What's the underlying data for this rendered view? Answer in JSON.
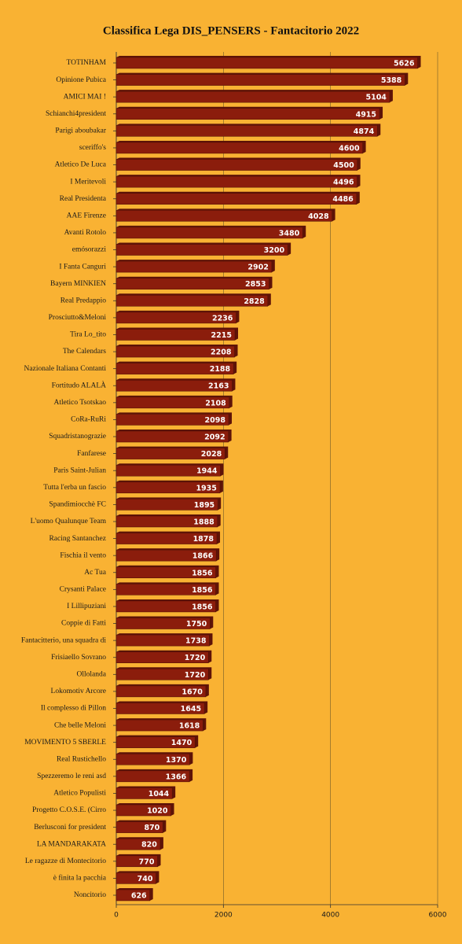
{
  "chart_data": {
    "type": "bar",
    "orientation": "horizontal",
    "title": "Classifica Lega DIS_PENSERS - Fantacitorio 2022",
    "categories": [
      "TOTINHAM",
      "Opinione Pubica",
      "AMICI MAI !",
      "Schianchi4president",
      "Parigi aboubakar",
      "sceriffo's",
      "Atletico De Luca",
      "I Meritevoli",
      "Real Presidenta",
      "AAE Firenze",
      "Avanti Rotolo",
      "emósorazzi",
      "I Fanta Canguri",
      "Bayern MINKIEN",
      "Real Predappio",
      "Prosciutto&Meloni",
      "Tira Lo_tito",
      "The Calendars",
      "Nazionale Italiana Contanti",
      "Fortitudo ALALÀ",
      "Atletico Tsotskao",
      "CoRa-RuRi",
      "Squadristanograzie",
      "Fanfarese",
      "Paris Saint-Julian",
      "Tutta l'erba un fascio",
      "Spandimiocchè FC",
      "L'uomo Qualunque Team",
      "Racing Santanchez",
      "Fischia il vento",
      "Ac Tua",
      "Crysanti Palace",
      "I Lillipuziani",
      "Coppie di Fatti",
      "Fantacitterio, una squadra di",
      "Frisiaello Sovrano",
      "Ollolanda",
      "Lokomotiv Arcore",
      "Il complesso di Pillon",
      "Che belle Meloni",
      "MOVIMENTO 5 SBERLE",
      "Real Rustichello",
      "Spezzeremo le reni asd",
      "Atletico Populisti",
      "Progetto C.O.S.E. (Cirro",
      "Berlusconi for president",
      "LA MANDARAKATA",
      "Le ragazze di Montecitorio",
      "è finita la pacchia",
      "Noncitorio"
    ],
    "values": [
      5626,
      5388,
      5104,
      4915,
      4874,
      4600,
      4500,
      4496,
      4486,
      4028,
      3480,
      3200,
      2902,
      2853,
      2828,
      2236,
      2215,
      2208,
      2188,
      2163,
      2108,
      2098,
      2092,
      2028,
      1944,
      1935,
      1895,
      1888,
      1878,
      1866,
      1856,
      1856,
      1856,
      1750,
      1738,
      1720,
      1720,
      1670,
      1645,
      1618,
      1470,
      1370,
      1366,
      1044,
      1020,
      870,
      820,
      770,
      740,
      626
    ],
    "color": "#8b1d0c",
    "xlim": [
      0,
      6000
    ],
    "xticks": [
      0,
      2000,
      4000,
      6000
    ],
    "grid": true
  }
}
